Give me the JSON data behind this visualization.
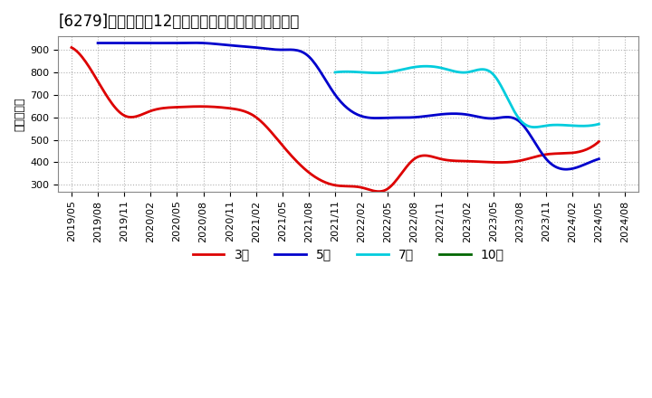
{
  "title": "[6279]　経常利益12か月移動合計の標準偏差の推移",
  "ylabel": "（百万円）",
  "background_color": "#ffffff",
  "grid_color": "#b0b0b0",
  "ylim": [
    270,
    960
  ],
  "yticks": [
    300,
    400,
    500,
    600,
    700,
    800,
    900
  ],
  "series": {
    "3年": {
      "color": "#dd0000",
      "x": [
        "2019/05",
        "2019/08",
        "2019/11",
        "2020/02",
        "2020/05",
        "2020/08",
        "2020/11",
        "2021/02",
        "2021/05",
        "2021/08",
        "2021/11",
        "2022/02",
        "2022/05",
        "2022/08",
        "2022/11",
        "2023/02",
        "2023/05",
        "2023/08",
        "2023/11",
        "2024/02",
        "2024/05"
      ],
      "y": [
        910,
        760,
        608,
        628,
        645,
        648,
        640,
        600,
        475,
        355,
        298,
        288,
        283,
        415,
        415,
        405,
        400,
        407,
        435,
        442,
        492
      ]
    },
    "5年": {
      "color": "#0000cc",
      "x": [
        "2019/08",
        "2019/11",
        "2020/02",
        "2020/05",
        "2020/08",
        "2020/11",
        "2021/02",
        "2021/05",
        "2021/08",
        "2021/11",
        "2022/02",
        "2022/05",
        "2022/08",
        "2022/11",
        "2023/02",
        "2023/05",
        "2023/08",
        "2023/11",
        "2024/02",
        "2024/05"
      ],
      "y": [
        930,
        930,
        930,
        930,
        930,
        920,
        910,
        900,
        870,
        700,
        605,
        598,
        600,
        613,
        612,
        595,
        580,
        415,
        372,
        415
      ]
    },
    "7年": {
      "color": "#00ccdd",
      "x": [
        "2021/11",
        "2022/02",
        "2022/05",
        "2022/08",
        "2022/11",
        "2023/02",
        "2023/05",
        "2023/08",
        "2023/11",
        "2024/02",
        "2024/05"
      ],
      "y": [
        800,
        800,
        800,
        823,
        820,
        800,
        790,
        590,
        563,
        563,
        570
      ]
    },
    "10年": {
      "color": "#006600",
      "x": [],
      "y": []
    }
  },
  "xticks": [
    "2019/05",
    "2019/08",
    "2019/11",
    "2020/02",
    "2020/05",
    "2020/08",
    "2020/11",
    "2021/02",
    "2021/05",
    "2021/08",
    "2021/11",
    "2022/02",
    "2022/05",
    "2022/08",
    "2022/11",
    "2023/02",
    "2023/05",
    "2023/08",
    "2023/11",
    "2024/02",
    "2024/05",
    "2024/08"
  ],
  "legend_order": [
    "3年",
    "5年",
    "7年",
    "10年"
  ],
  "title_fontsize": 12,
  "axis_fontsize": 9,
  "tick_fontsize": 8,
  "linewidth": 2.0
}
